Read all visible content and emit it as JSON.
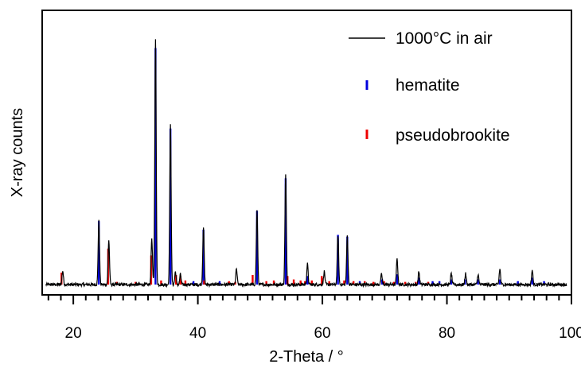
{
  "chart_data": {
    "type": "line",
    "title": "",
    "xlabel": "2-Theta / °",
    "ylabel": "X-ray counts",
    "xlim": [
      15,
      100
    ],
    "ylim": [
      -30,
      800
    ],
    "x_ticks": [
      20,
      40,
      60,
      80,
      100
    ],
    "x_tick_labels": [
      "20",
      "40",
      "60",
      "80",
      "100"
    ],
    "minor_tick_step": 2,
    "grid": false,
    "legend_position": "top-right",
    "baseline": 0,
    "series": [
      {
        "name": "1000°C in air",
        "kind": "pattern",
        "color": "#000000",
        "peaks": [
          [
            18.3,
            40
          ],
          [
            24.1,
            185
          ],
          [
            25.7,
            130
          ],
          [
            32.6,
            135
          ],
          [
            33.2,
            720
          ],
          [
            35.6,
            465
          ],
          [
            36.4,
            38
          ],
          [
            37.2,
            30
          ],
          [
            40.9,
            168
          ],
          [
            46.2,
            45
          ],
          [
            49.5,
            215
          ],
          [
            54.1,
            320
          ],
          [
            57.6,
            60
          ],
          [
            60.3,
            38
          ],
          [
            62.5,
            145
          ],
          [
            64.0,
            142
          ],
          [
            69.5,
            30
          ],
          [
            72.0,
            75
          ],
          [
            75.5,
            38
          ],
          [
            80.7,
            32
          ],
          [
            83.0,
            32
          ],
          [
            85.0,
            30
          ],
          [
            88.5,
            45
          ],
          [
            93.7,
            42
          ]
        ]
      },
      {
        "name": "hematite",
        "kind": "sticks",
        "color": "#0000dd",
        "sticks": [
          [
            24.1,
            185
          ],
          [
            33.2,
            690
          ],
          [
            35.6,
            455
          ],
          [
            39.3,
            10
          ],
          [
            40.9,
            160
          ],
          [
            43.5,
            10
          ],
          [
            49.5,
            215
          ],
          [
            54.1,
            310
          ],
          [
            57.6,
            25
          ],
          [
            62.5,
            145
          ],
          [
            64.0,
            140
          ],
          [
            66.0,
            10
          ],
          [
            69.6,
            15
          ],
          [
            72.0,
            30
          ],
          [
            75.5,
            20
          ],
          [
            77.7,
            10
          ],
          [
            78.8,
            10
          ],
          [
            80.7,
            15
          ],
          [
            82.9,
            15
          ],
          [
            85.0,
            15
          ],
          [
            88.5,
            15
          ],
          [
            91.4,
            10
          ],
          [
            93.7,
            20
          ],
          [
            95.6,
            10
          ]
        ]
      },
      {
        "name": "pseudobrookite",
        "kind": "sticks",
        "color": "#ee0000",
        "sticks": [
          [
            18.1,
            35
          ],
          [
            25.6,
            105
          ],
          [
            27.0,
            8
          ],
          [
            30.0,
            8
          ],
          [
            32.5,
            85
          ],
          [
            34.1,
            12
          ],
          [
            36.5,
            28
          ],
          [
            37.2,
            25
          ],
          [
            38.0,
            12
          ],
          [
            41.0,
            12
          ],
          [
            45.0,
            10
          ],
          [
            46.0,
            8
          ],
          [
            48.8,
            28
          ],
          [
            51.0,
            10
          ],
          [
            52.2,
            12
          ],
          [
            54.4,
            25
          ],
          [
            55.4,
            15
          ],
          [
            56.5,
            12
          ],
          [
            57.2,
            10
          ],
          [
            58.3,
            12
          ],
          [
            59.9,
            25
          ],
          [
            61.1,
            10
          ],
          [
            63.5,
            12
          ],
          [
            65.0,
            10
          ],
          [
            66.8,
            10
          ],
          [
            68.2,
            8
          ],
          [
            69.9,
            10
          ],
          [
            71.5,
            8
          ],
          [
            73.3,
            8
          ],
          [
            75.0,
            8
          ],
          [
            77.0,
            8
          ]
        ]
      }
    ]
  }
}
